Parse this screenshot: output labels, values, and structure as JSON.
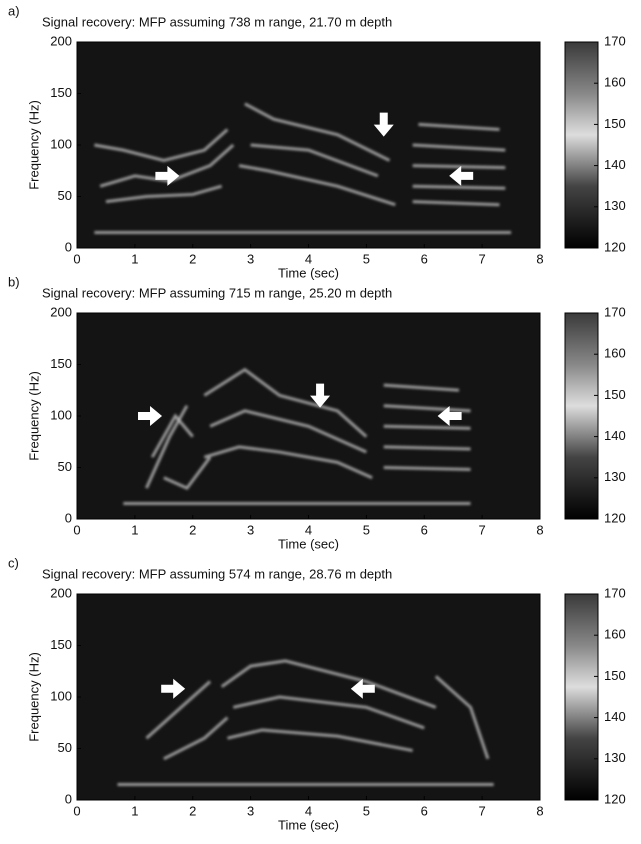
{
  "chart_data": [
    {
      "type": "spectrogram",
      "panel_label": "a)",
      "title": "Signal recovery: MFP assuming 738 m range, 21.70 m depth",
      "xlabel": "Time (sec)",
      "ylabel": "Frequency (Hz)",
      "xlim": [
        0,
        8
      ],
      "xticks": [
        0,
        1,
        2,
        3,
        4,
        5,
        6,
        7,
        8
      ],
      "ylim": [
        0,
        200
      ],
      "yticks": [
        0,
        50,
        100,
        150,
        200
      ],
      "clim": [
        120,
        170
      ],
      "cticks": [
        120,
        130,
        140,
        150,
        160,
        170
      ]
    },
    {
      "type": "spectrogram",
      "panel_label": "b)",
      "title": "Signal recovery: MFP assuming 715 m range, 25.20 m depth",
      "xlabel": "Time (sec)",
      "ylabel": "Frequency (Hz)",
      "xlim": [
        0,
        8
      ],
      "xticks": [
        0,
        1,
        2,
        3,
        4,
        5,
        6,
        7,
        8
      ],
      "ylim": [
        0,
        200
      ],
      "yticks": [
        0,
        50,
        100,
        150,
        200
      ],
      "clim": [
        120,
        170
      ],
      "cticks": [
        120,
        130,
        140,
        150,
        160,
        170
      ]
    },
    {
      "type": "spectrogram",
      "panel_label": "c)",
      "title": "Signal recovery: MFP assuming 574 m range, 28.76 m depth",
      "xlabel": "Time (sec)",
      "ylabel": "Frequency (Hz)",
      "xlim": [
        0,
        8
      ],
      "xticks": [
        0,
        1,
        2,
        3,
        4,
        5,
        6,
        7,
        8
      ],
      "ylim": [
        0,
        200
      ],
      "yticks": [
        0,
        50,
        100,
        150,
        200
      ],
      "clim": [
        120,
        170
      ],
      "cticks": [
        120,
        130,
        140,
        150,
        160,
        170
      ]
    }
  ]
}
